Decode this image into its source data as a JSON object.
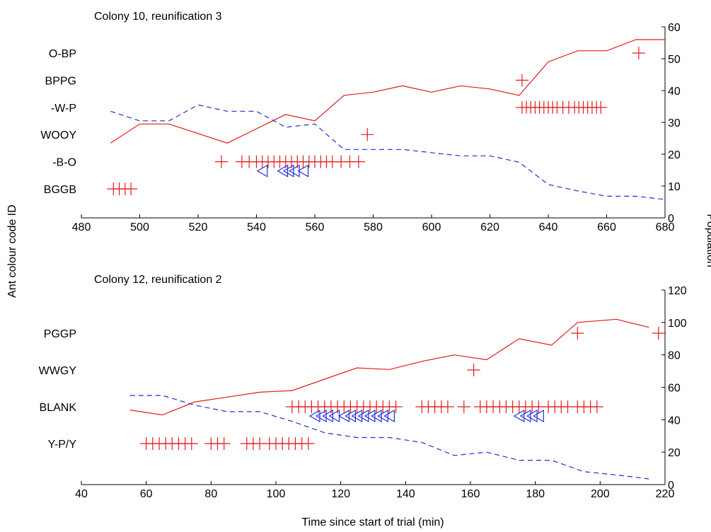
{
  "labels": {
    "y_left": "Ant colour code ID",
    "y_right": "Population",
    "x_bottom": "Time since start of trial (min)"
  },
  "colors": {
    "solid": "#e31a1c",
    "dashed": "#1f2fd6",
    "plus": "#e31a1c",
    "triangle": "#1f2fd6"
  },
  "chart_data": [
    {
      "type": "line",
      "title": "Colony 10, reunification 3",
      "xlim": [
        480,
        680
      ],
      "x_ticks": [
        480,
        500,
        520,
        540,
        560,
        580,
        600,
        620,
        640,
        660,
        680
      ],
      "y2lim": [
        0,
        60
      ],
      "y2_ticks": [
        0,
        10,
        20,
        30,
        40,
        50,
        60
      ],
      "categories": [
        "BGGB",
        "-B-O",
        "WOOY",
        "-W-P",
        "BPPG",
        "O-BP"
      ],
      "series": [
        {
          "style": "solid",
          "x": [
            490,
            500,
            510,
            530,
            540,
            550,
            560,
            570,
            580,
            590,
            600,
            610,
            620,
            630,
            640,
            650,
            660,
            670,
            680
          ],
          "y": [
            23.5,
            29.5,
            29.5,
            23.5,
            28,
            32.5,
            30.5,
            38.5,
            39.5,
            41.5,
            39.5,
            41.5,
            40.5,
            38.5,
            49,
            52.5,
            52.5,
            56,
            56
          ]
        },
        {
          "style": "dashed",
          "x": [
            490,
            500,
            510,
            520,
            530,
            540,
            550,
            560,
            570,
            580,
            590,
            600,
            610,
            620,
            630,
            640,
            650,
            660,
            670,
            680
          ],
          "y": [
            33.5,
            30.5,
            30.5,
            35.5,
            33.5,
            33.5,
            28.5,
            29.5,
            21.5,
            21.5,
            21.5,
            20.5,
            19.5,
            19.5,
            17.5,
            10.5,
            8.5,
            6.8,
            6.8,
            5.8
          ]
        }
      ],
      "events": [
        {
          "id": "BGGB",
          "plus": [
            491,
            493,
            495,
            497
          ]
        },
        {
          "id": "-B-O",
          "plus": [
            528,
            535,
            537.5,
            540,
            542,
            544,
            546,
            548,
            550,
            552,
            554,
            556,
            558,
            560,
            562,
            564,
            566,
            569,
            572,
            575
          ],
          "triangle": [
            542,
            549,
            551,
            553,
            556
          ]
        },
        {
          "id": "WOOY",
          "plus": [
            578
          ]
        },
        {
          "id": "-W-P",
          "plus": [
            631,
            632.5,
            634,
            635.5,
            637,
            638.5,
            640,
            641.5,
            643,
            645,
            647,
            649,
            650.5,
            652,
            653.5,
            655,
            656.5,
            658
          ]
        },
        {
          "id": "BPPG",
          "plus": [
            631
          ]
        },
        {
          "id": "O-BP",
          "plus": [
            671
          ]
        }
      ]
    },
    {
      "type": "line",
      "title": "Colony 12, reunification 2",
      "xlim": [
        40,
        220
      ],
      "x_ticks": [
        40,
        60,
        80,
        100,
        120,
        140,
        160,
        180,
        200,
        220
      ],
      "y2lim": [
        0,
        120
      ],
      "y2_ticks": [
        0,
        20,
        40,
        60,
        80,
        100,
        120
      ],
      "categories": [
        "Y-P/Y",
        "BLANK",
        "WWGY",
        "PGGP"
      ],
      "series": [
        {
          "style": "solid",
          "x": [
            55,
            65,
            75,
            85,
            95,
            105,
            115,
            125,
            135,
            145,
            155,
            165,
            175,
            185,
            193,
            205,
            215
          ],
          "y": [
            46,
            43,
            51,
            54,
            57,
            58,
            65,
            72,
            71,
            76,
            80,
            77,
            90,
            86,
            100,
            102,
            97
          ]
        },
        {
          "style": "dashed",
          "x": [
            55,
            65,
            75,
            85,
            95,
            105,
            115,
            125,
            135,
            145,
            155,
            165,
            175,
            185,
            195,
            205,
            215
          ],
          "y": [
            55,
            55,
            49,
            45,
            45,
            39,
            32,
            29,
            29,
            26,
            18,
            20,
            15,
            15,
            8,
            6,
            3.5
          ]
        }
      ],
      "events": [
        {
          "id": "Y-P/Y",
          "plus": [
            60,
            62,
            64,
            66,
            68,
            70,
            72,
            74,
            80,
            82,
            84,
            91,
            93,
            95,
            98,
            100,
            102,
            104,
            106,
            108,
            110
          ]
        },
        {
          "id": "BLANK",
          "plus": [
            105,
            107,
            109,
            111,
            113,
            115,
            117,
            119,
            121,
            123,
            125,
            127,
            129,
            131,
            133,
            135,
            137,
            145,
            147,
            149,
            151,
            153,
            158,
            163,
            165,
            167,
            169,
            171,
            173,
            175,
            177,
            179,
            181,
            184,
            186,
            188,
            190,
            193,
            195,
            197,
            199
          ],
          "triangle": [
            112,
            114,
            116,
            118,
            121,
            123,
            125,
            127,
            129,
            131,
            133,
            135,
            175,
            177,
            179,
            181
          ]
        },
        {
          "id": "WWGY",
          "plus": [
            161
          ]
        },
        {
          "id": "PGGP",
          "plus": [
            193,
            218
          ]
        }
      ]
    }
  ]
}
